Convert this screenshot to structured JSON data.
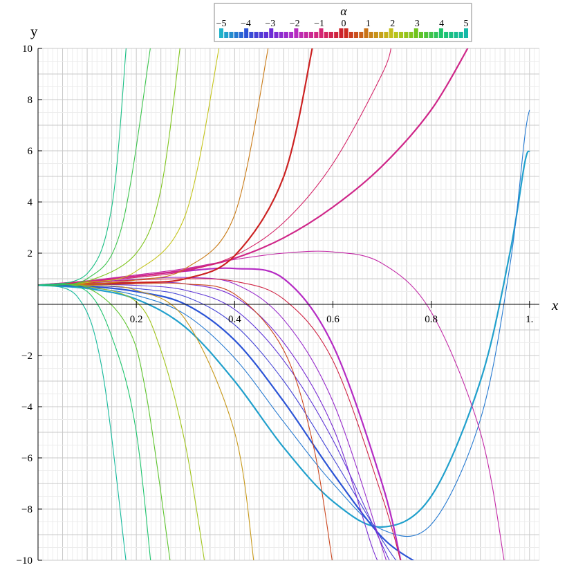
{
  "chart_data": {
    "type": "line",
    "xlabel": "x",
    "ylabel": "y",
    "xlim": [
      0.0,
      1.02
    ],
    "ylim": [
      -10,
      10
    ],
    "grid": true,
    "legend": {
      "title": "α",
      "placement": "top",
      "ticks": [
        "−5",
        "−4",
        "−3",
        "−2",
        "−1",
        "0",
        "1",
        "2",
        "3",
        "4",
        "5"
      ],
      "parameter_range": [
        -5,
        5
      ]
    },
    "x_ticks": [
      {
        "value": 0.2,
        "label": "0.2"
      },
      {
        "value": 0.4,
        "label": "0.4"
      },
      {
        "value": 0.6,
        "label": "0.6"
      },
      {
        "value": 0.8,
        "label": "0.8"
      },
      {
        "value": 1.0,
        "label": "1."
      }
    ],
    "y_ticks": [
      {
        "value": 10,
        "label": "10"
      },
      {
        "value": 8,
        "label": "8"
      },
      {
        "value": 6,
        "label": "6"
      },
      {
        "value": 4,
        "label": "4"
      },
      {
        "value": 2,
        "label": "2"
      },
      {
        "value": -2,
        "label": "−2"
      },
      {
        "value": -4,
        "label": "−4"
      },
      {
        "value": -6,
        "label": "−6"
      },
      {
        "value": -8,
        "label": "−8"
      },
      {
        "value": -10,
        "label": "−10"
      }
    ],
    "colors": [
      "#1fb3c9",
      "#2b54d6",
      "#6a2bd6",
      "#b52bc4",
      "#d6267a",
      "#cc2222",
      "#c97a16",
      "#c4c41c",
      "#6cc41c",
      "#1cc46c",
      "#15b8a8"
    ],
    "series": [
      {
        "alpha": -4.8,
        "points": [
          [
            0.0,
            0.75
          ],
          [
            0.1,
            0.62
          ],
          [
            0.2,
            0.2
          ],
          [
            0.3,
            -0.9
          ],
          [
            0.4,
            -3.0
          ],
          [
            0.5,
            -5.6
          ],
          [
            0.6,
            -7.7
          ],
          [
            0.7,
            -8.7
          ],
          [
            0.8,
            -7.5
          ],
          [
            0.9,
            -3.0
          ],
          [
            0.96,
            2.0
          ],
          [
            0.99,
            5.5
          ],
          [
            1.0,
            6.0
          ]
        ]
      },
      {
        "alpha": -4.4,
        "points": [
          [
            0.0,
            0.75
          ],
          [
            0.1,
            0.66
          ],
          [
            0.2,
            0.35
          ],
          [
            0.3,
            -0.4
          ],
          [
            0.4,
            -2.1
          ],
          [
            0.5,
            -4.6
          ],
          [
            0.6,
            -7.0
          ],
          [
            0.7,
            -8.8
          ],
          [
            0.8,
            -8.6
          ],
          [
            0.9,
            -4.5
          ],
          [
            0.96,
            1.5
          ],
          [
            0.99,
            6.5
          ],
          [
            1.0,
            7.6
          ]
        ]
      },
      {
        "alpha": -4.0,
        "points": [
          [
            0.0,
            0.75
          ],
          [
            0.1,
            0.7
          ],
          [
            0.2,
            0.5
          ],
          [
            0.3,
            0.0
          ],
          [
            0.4,
            -1.4
          ],
          [
            0.5,
            -3.8
          ],
          [
            0.6,
            -6.6
          ],
          [
            0.7,
            -9.1
          ],
          [
            0.78,
            -10.2
          ]
        ]
      },
      {
        "alpha": -3.6,
        "points": [
          [
            0.0,
            0.75
          ],
          [
            0.1,
            0.74
          ],
          [
            0.2,
            0.62
          ],
          [
            0.3,
            0.3
          ],
          [
            0.4,
            -0.8
          ],
          [
            0.5,
            -3.0
          ],
          [
            0.6,
            -6.0
          ],
          [
            0.7,
            -9.2
          ],
          [
            0.74,
            -10.3
          ]
        ]
      },
      {
        "alpha": -3.2,
        "points": [
          [
            0.0,
            0.75
          ],
          [
            0.1,
            0.78
          ],
          [
            0.2,
            0.74
          ],
          [
            0.3,
            0.55
          ],
          [
            0.4,
            -0.2
          ],
          [
            0.5,
            -2.2
          ],
          [
            0.6,
            -5.3
          ],
          [
            0.7,
            -9.4
          ],
          [
            0.72,
            -10.2
          ]
        ]
      },
      {
        "alpha": -2.8,
        "points": [
          [
            0.0,
            0.75
          ],
          [
            0.1,
            0.82
          ],
          [
            0.2,
            0.86
          ],
          [
            0.3,
            0.8
          ],
          [
            0.4,
            0.3
          ],
          [
            0.5,
            -1.5
          ],
          [
            0.6,
            -4.8
          ],
          [
            0.68,
            -9.5
          ],
          [
            0.7,
            -10.2
          ]
        ]
      },
      {
        "alpha": -2.4,
        "points": [
          [
            0.0,
            0.75
          ],
          [
            0.1,
            0.86
          ],
          [
            0.2,
            0.98
          ],
          [
            0.3,
            1.05
          ],
          [
            0.4,
            0.8
          ],
          [
            0.5,
            -0.6
          ],
          [
            0.6,
            -3.8
          ],
          [
            0.7,
            -9.5
          ],
          [
            0.71,
            -10.2
          ]
        ]
      },
      {
        "alpha": -2.0,
        "points": [
          [
            0.0,
            0.75
          ],
          [
            0.1,
            0.9
          ],
          [
            0.2,
            1.1
          ],
          [
            0.3,
            1.3
          ],
          [
            0.4,
            1.4
          ],
          [
            0.5,
            1.0
          ],
          [
            0.6,
            -1.6
          ],
          [
            0.7,
            -7.0
          ],
          [
            0.74,
            -10.2
          ]
        ]
      },
      {
        "alpha": -1.6,
        "points": [
          [
            0.0,
            0.75
          ],
          [
            0.1,
            0.92
          ],
          [
            0.2,
            1.15
          ],
          [
            0.3,
            1.4
          ],
          [
            0.4,
            1.75
          ],
          [
            0.5,
            2.0
          ],
          [
            0.6,
            2.05
          ],
          [
            0.7,
            1.6
          ],
          [
            0.8,
            -0.3
          ],
          [
            0.9,
            -5.0
          ],
          [
            0.95,
            -10.2
          ]
        ]
      },
      {
        "alpha": -1.2,
        "points": [
          [
            0.0,
            0.75
          ],
          [
            0.1,
            0.9
          ],
          [
            0.2,
            1.1
          ],
          [
            0.3,
            1.35
          ],
          [
            0.4,
            1.8
          ],
          [
            0.5,
            2.6
          ],
          [
            0.6,
            3.8
          ],
          [
            0.7,
            5.4
          ],
          [
            0.8,
            7.6
          ],
          [
            0.88,
            10.2
          ]
        ]
      },
      {
        "alpha": -0.8,
        "points": [
          [
            0.0,
            0.75
          ],
          [
            0.1,
            0.88
          ],
          [
            0.2,
            1.05
          ],
          [
            0.3,
            1.3
          ],
          [
            0.4,
            1.9
          ],
          [
            0.5,
            3.2
          ],
          [
            0.6,
            5.5
          ],
          [
            0.7,
            9.0
          ],
          [
            0.72,
            10.2
          ]
        ]
      },
      {
        "alpha": -0.4,
        "points": [
          [
            0.0,
            0.75
          ],
          [
            0.1,
            0.84
          ],
          [
            0.2,
            0.95
          ],
          [
            0.3,
            1.0
          ],
          [
            0.4,
            0.9
          ],
          [
            0.5,
            0.2
          ],
          [
            0.6,
            -2.2
          ],
          [
            0.7,
            -7.5
          ],
          [
            0.74,
            -10.2
          ]
        ]
      },
      {
        "alpha": 0.0,
        "points": [
          [
            0.0,
            0.75
          ],
          [
            0.1,
            0.8
          ],
          [
            0.2,
            0.85
          ],
          [
            0.3,
            1.0
          ],
          [
            0.4,
            1.9
          ],
          [
            0.5,
            5.0
          ],
          [
            0.56,
            10.2
          ]
        ]
      },
      {
        "alpha": 0.4,
        "points": [
          [
            0.0,
            0.75
          ],
          [
            0.1,
            0.77
          ],
          [
            0.2,
            0.8
          ],
          [
            0.3,
            0.8
          ],
          [
            0.4,
            0.4
          ],
          [
            0.5,
            -1.8
          ],
          [
            0.56,
            -5.5
          ],
          [
            0.6,
            -10.2
          ]
        ]
      },
      {
        "alpha": 1.0,
        "points": [
          [
            0.0,
            0.75
          ],
          [
            0.1,
            0.8
          ],
          [
            0.2,
            0.95
          ],
          [
            0.3,
            1.4
          ],
          [
            0.4,
            3.5
          ],
          [
            0.47,
            10.2
          ]
        ]
      },
      {
        "alpha": 1.4,
        "points": [
          [
            0.0,
            0.75
          ],
          [
            0.1,
            0.75
          ],
          [
            0.2,
            0.55
          ],
          [
            0.3,
            -0.6
          ],
          [
            0.4,
            -5.0
          ],
          [
            0.44,
            -10.2
          ]
        ]
      },
      {
        "alpha": 2.0,
        "points": [
          [
            0.0,
            0.75
          ],
          [
            0.1,
            0.85
          ],
          [
            0.2,
            1.3
          ],
          [
            0.3,
            3.5
          ],
          [
            0.37,
            10.2
          ]
        ]
      },
      {
        "alpha": 2.4,
        "points": [
          [
            0.0,
            0.75
          ],
          [
            0.1,
            0.7
          ],
          [
            0.2,
            0.1
          ],
          [
            0.25,
            -1.8
          ],
          [
            0.3,
            -5.5
          ],
          [
            0.34,
            -10.2
          ]
        ]
      },
      {
        "alpha": 2.8,
        "points": [
          [
            0.0,
            0.75
          ],
          [
            0.1,
            0.9
          ],
          [
            0.2,
            2.0
          ],
          [
            0.25,
            4.5
          ],
          [
            0.29,
            10.2
          ]
        ]
      },
      {
        "alpha": 3.2,
        "points": [
          [
            0.0,
            0.75
          ],
          [
            0.1,
            0.65
          ],
          [
            0.18,
            -0.8
          ],
          [
            0.22,
            -3.5
          ],
          [
            0.27,
            -10.2
          ]
        ]
      },
      {
        "alpha": 3.6,
        "points": [
          [
            0.0,
            0.75
          ],
          [
            0.1,
            1.0
          ],
          [
            0.17,
            3.0
          ],
          [
            0.23,
            10.2
          ]
        ]
      },
      {
        "alpha": 4.0,
        "points": [
          [
            0.0,
            0.75
          ],
          [
            0.1,
            0.5
          ],
          [
            0.16,
            -1.8
          ],
          [
            0.2,
            -5.0
          ],
          [
            0.23,
            -10.2
          ]
        ]
      },
      {
        "alpha": 4.4,
        "points": [
          [
            0.0,
            0.75
          ],
          [
            0.1,
            1.2
          ],
          [
            0.15,
            3.8
          ],
          [
            0.18,
            10.2
          ]
        ]
      },
      {
        "alpha": 4.8,
        "points": [
          [
            0.0,
            0.75
          ],
          [
            0.08,
            0.3
          ],
          [
            0.13,
            -2.5
          ],
          [
            0.18,
            -10.2
          ]
        ]
      }
    ]
  }
}
